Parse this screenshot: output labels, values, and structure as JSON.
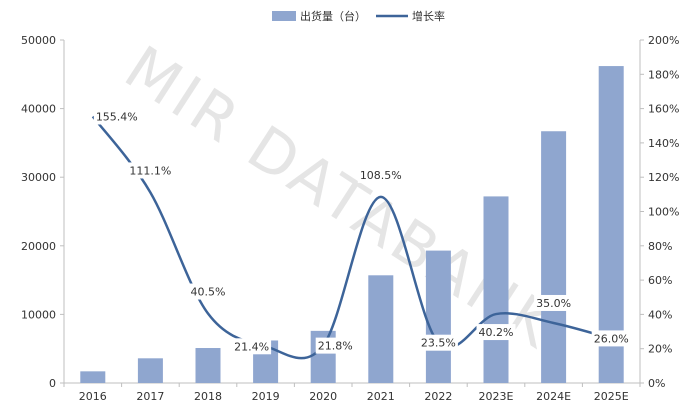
{
  "watermark": "MIR DATABANK",
  "colors": {
    "bar": "#8fa6cf",
    "line": "#3d6499",
    "axis": "#bfbfbf",
    "text": "#333333"
  },
  "chart_data": {
    "type": "bar",
    "categories": [
      "2016",
      "2017",
      "2018",
      "2019",
      "2020",
      "2021",
      "2022",
      "2023E",
      "2024E",
      "2025E"
    ],
    "series": [
      {
        "name": "出货量（台）",
        "type": "bar",
        "axis": "left",
        "values": [
          1700,
          3600,
          5100,
          6200,
          7600,
          15700,
          19300,
          27200,
          36700,
          46200
        ]
      },
      {
        "name": "增长率",
        "type": "line",
        "axis": "right",
        "values": [
          155.4,
          111.1,
          40.5,
          21.4,
          21.8,
          108.5,
          23.5,
          40.2,
          35.0,
          26.0
        ],
        "labels": [
          "155.4%",
          "111.1%",
          "40.5%",
          "21.4%",
          "21.8%",
          "108.5%",
          "23.5%",
          "40.2%",
          "35.0%",
          "26.0%"
        ]
      }
    ],
    "y_left": {
      "ylim": [
        0,
        50000
      ],
      "ticks": [
        "0",
        "10000",
        "20000",
        "30000",
        "40000",
        "50000"
      ]
    },
    "y_right": {
      "ylim": [
        0,
        200
      ],
      "ticks": [
        "0%",
        "20%",
        "40%",
        "60%",
        "80%",
        "100%",
        "120%",
        "140%",
        "160%",
        "180%",
        "200%"
      ]
    },
    "legend_position": "top-center",
    "grid": false
  }
}
